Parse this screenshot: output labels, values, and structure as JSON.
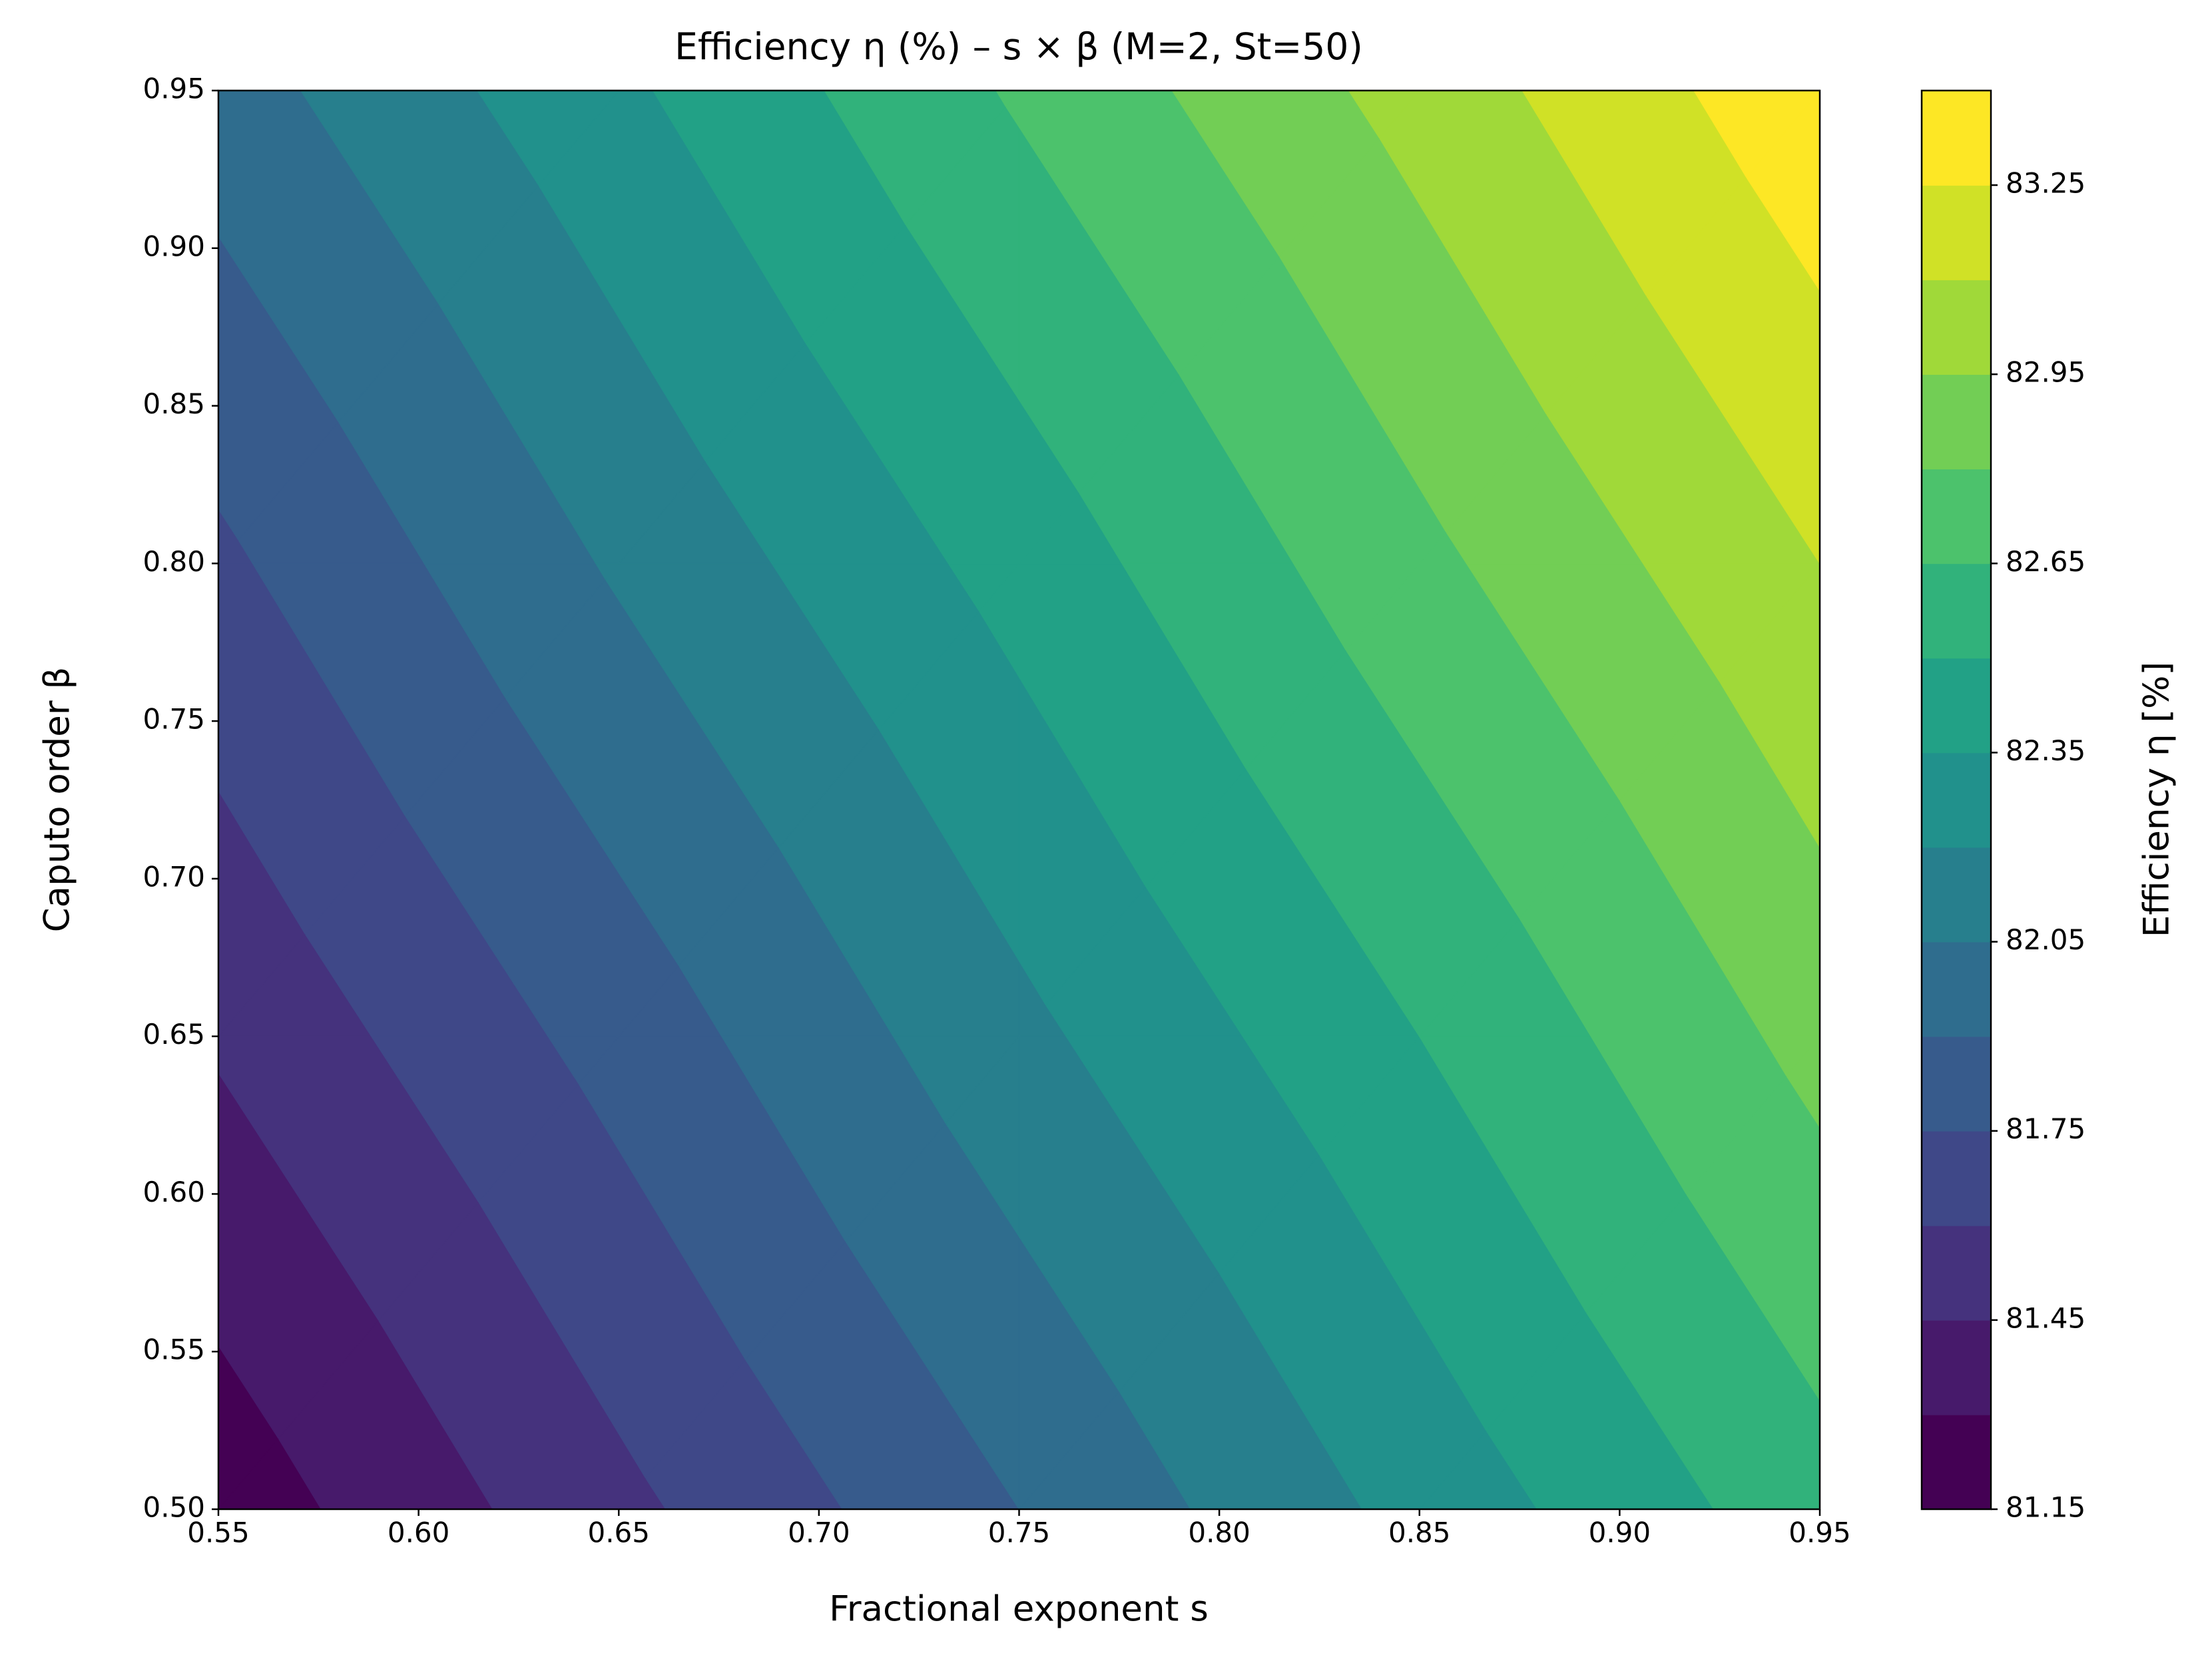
{
  "chart_data": {
    "type": "contourf",
    "title": "Efficiency η (%) – s × β (M=2, St=50)",
    "x_label": "Fractional exponent s",
    "y_label": "Caputo order β",
    "x": [
      0.55,
      0.65,
      0.75,
      0.85,
      0.95
    ],
    "y": [
      0.5,
      0.65,
      0.8,
      0.95
    ],
    "z": [
      [
        81.21,
        81.56,
        81.9,
        82.25,
        82.59
      ],
      [
        81.47,
        81.81,
        82.16,
        82.5,
        82.85
      ],
      [
        81.72,
        82.07,
        82.41,
        82.76,
        83.1
      ],
      [
        81.98,
        82.32,
        82.67,
        83.01,
        83.36
      ]
    ],
    "levels": [
      81.15,
      81.3,
      81.45,
      81.6,
      81.75,
      81.9,
      82.05,
      82.2,
      82.35,
      82.5,
      82.65,
      82.8,
      82.95,
      83.1,
      83.25,
      83.4
    ],
    "colors": [
      "#440154",
      "#471a6b",
      "#45327d",
      "#3f4888",
      "#375b8c",
      "#2f6d8e",
      "#277f8d",
      "#21918c",
      "#22a186",
      "#31b27b",
      "#4cc26c",
      "#72ce55",
      "#a0d939",
      "#d0e126",
      "#fde725"
    ],
    "xlim": [
      0.55,
      0.95
    ],
    "ylim": [
      0.5,
      0.95
    ],
    "xticks": [
      0.55,
      {
        "value": 0.6,
        "label": "0.60"
      },
      0.65,
      {
        "value": 0.7,
        "label": "0.70"
      },
      0.75,
      {
        "value": 0.8,
        "label": "0.80"
      },
      0.85,
      {
        "value": 0.9,
        "label": "0.90"
      },
      0.95
    ],
    "yticks": [
      {
        "value": 0.5,
        "label": "0.50"
      },
      0.55,
      {
        "value": 0.6,
        "label": "0.60"
      },
      0.65,
      {
        "value": 0.7,
        "label": "0.70"
      },
      0.75,
      {
        "value": 0.8,
        "label": "0.80"
      },
      0.85,
      {
        "value": 0.9,
        "label": "0.90"
      },
      0.95
    ],
    "colorbar": {
      "label": "Efficiency η [%]",
      "lim": [
        81.15,
        83.4
      ],
      "ticks": [
        81.15,
        81.45,
        81.75,
        82.05,
        82.35,
        82.65,
        82.95,
        83.25
      ]
    }
  }
}
